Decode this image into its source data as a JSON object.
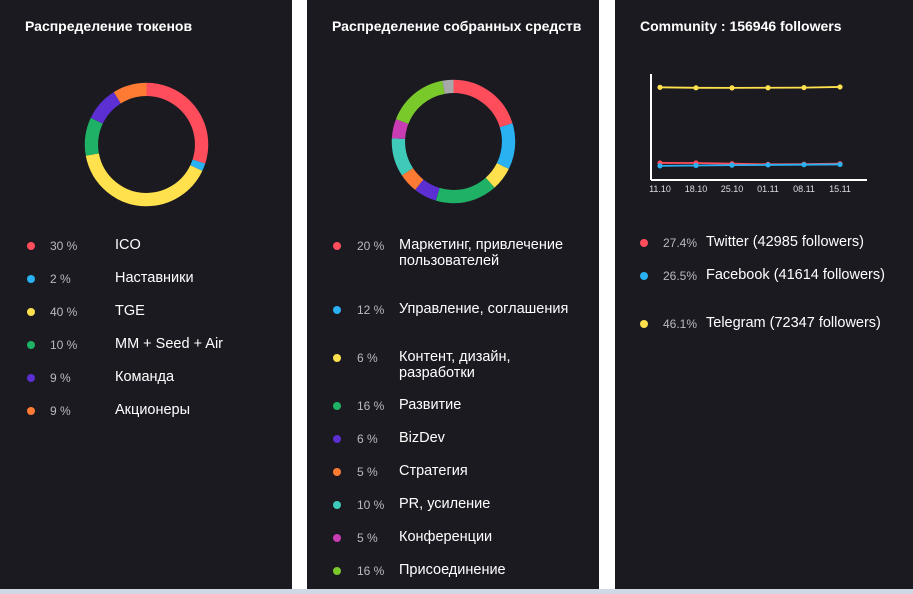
{
  "panels": {
    "tokens": {
      "title": "Распределение токенов",
      "legend": [
        {
          "pct": "30 %",
          "label": "ICO",
          "color": "#ff4d5c"
        },
        {
          "pct": "2 %",
          "label": "Наставники",
          "color": "#29b1f2"
        },
        {
          "pct": "40 %",
          "label": "TGE",
          "color": "#ffe14d"
        },
        {
          "pct": "10 %",
          "label": "MM + Seed + Air",
          "color": "#1fb266"
        },
        {
          "pct": "9 %",
          "label": "Команда",
          "color": "#5b2fd1"
        },
        {
          "pct": "9 %",
          "label": "Акционеры",
          "color": "#ff7a33"
        }
      ]
    },
    "funds": {
      "title": "Распределение собранных средств",
      "legend": [
        {
          "pct": "20 %",
          "label": "Маркетинг, привлечение пользователей",
          "color": "#ff4d5c"
        },
        {
          "pct": "12 %",
          "label": "Управление, соглашения",
          "color": "#29b1f2"
        },
        {
          "pct": "6 %",
          "label": "Контент, дизайн, разработки",
          "color": "#ffe14d"
        },
        {
          "pct": "16 %",
          "label": "Развитие",
          "color": "#1fb266"
        },
        {
          "pct": "6 %",
          "label": "BizDev",
          "color": "#5b2fd1"
        },
        {
          "pct": "5 %",
          "label": "Стратегия",
          "color": "#ff7a33"
        },
        {
          "pct": "10 %",
          "label": "PR, усиление",
          "color": "#3ec9b8"
        },
        {
          "pct": "5 %",
          "label": "Конференции",
          "color": "#c83cb4"
        },
        {
          "pct": "16 %",
          "label": "Присоединение",
          "color": "#7ac92b"
        }
      ],
      "extra_segment_color": "#a8a8a8"
    },
    "community": {
      "title": "Community : 156946 followers",
      "legend": [
        {
          "pct": "27.4%",
          "label": "Twitter (42985 followers)",
          "color": "#ff4d5c"
        },
        {
          "pct": "26.5%",
          "label": "Facebook (41614 followers)",
          "color": "#29b1f2"
        },
        {
          "pct": "46.1%",
          "label": "Telegram (72347 followers)",
          "color": "#ffe14d"
        }
      ]
    }
  },
  "chart_data": [
    {
      "type": "pie",
      "title": "Распределение токенов",
      "categories": [
        "ICO",
        "Наставники",
        "TGE",
        "MM + Seed + Air",
        "Команда",
        "Акционеры"
      ],
      "values": [
        30,
        2,
        40,
        10,
        9,
        9
      ],
      "colors": [
        "#ff4d5c",
        "#29b1f2",
        "#ffe14d",
        "#1fb266",
        "#5b2fd1",
        "#ff7a33"
      ]
    },
    {
      "type": "pie",
      "title": "Распределение собранных средств",
      "categories": [
        "Маркетинг, привлечение пользователей",
        "Управление, соглашения",
        "Контент, дизайн, разработки",
        "Развитие",
        "BizDev",
        "Стратегия",
        "PR, усиление",
        "Конференции",
        "Присоединение"
      ],
      "values": [
        20,
        12,
        6,
        16,
        6,
        5,
        10,
        5,
        16
      ],
      "colors": [
        "#ff4d5c",
        "#29b1f2",
        "#ffe14d",
        "#1fb266",
        "#5b2fd1",
        "#ff7a33",
        "#3ec9b8",
        "#c83cb4",
        "#7ac92b"
      ]
    },
    {
      "type": "line",
      "title": "Community : 156946 followers",
      "x": [
        "11.10",
        "18.10",
        "25.10",
        "01.11",
        "08.11",
        "15.11"
      ],
      "series": [
        {
          "name": "Twitter",
          "color": "#ff4d5c",
          "values": [
            42700,
            42680,
            42400,
            42150,
            42200,
            42400
          ]
        },
        {
          "name": "Facebook",
          "color": "#29b1f2",
          "values": [
            41550,
            41700,
            41820,
            41900,
            42000,
            42100
          ]
        },
        {
          "name": "Telegram",
          "color": "#ffe14d",
          "values": [
            72350,
            72150,
            72120,
            72180,
            72240,
            72500
          ]
        }
      ],
      "ylim": [
        36000,
        76000
      ],
      "grid": false
    }
  ]
}
